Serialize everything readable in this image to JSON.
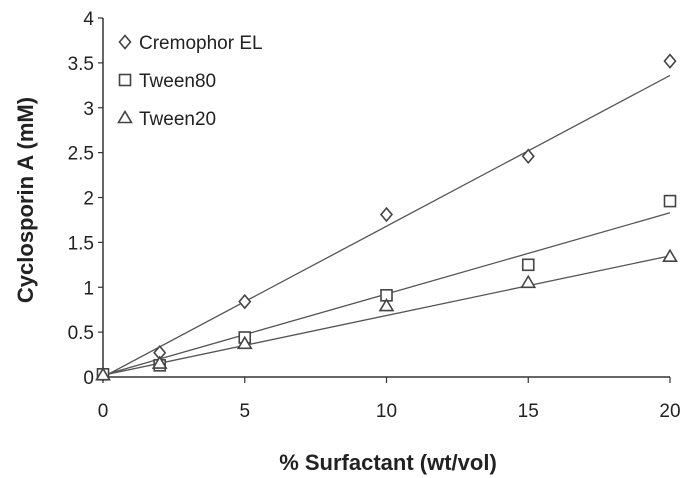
{
  "chart_data": {
    "type": "scatter",
    "xlabel": "% Surfactant (wt/vol)",
    "ylabel": "Cyclosporin A (mM)",
    "xlim": [
      0,
      20
    ],
    "ylim": [
      0,
      4
    ],
    "xticks": [
      "0",
      "5",
      "10",
      "15",
      "20"
    ],
    "yticks": [
      "0",
      "0.5",
      "1",
      "1.5",
      "2",
      "2.5",
      "3",
      "3.5",
      "4"
    ],
    "grid": false,
    "legend_position": "top-left",
    "series": [
      {
        "name": "Cremophor EL",
        "marker": "diamond",
        "x": [
          0,
          2,
          5,
          10,
          15,
          20
        ],
        "y": [
          0.03,
          0.27,
          0.84,
          1.81,
          2.46,
          3.52
        ],
        "fit_line": {
          "x": [
            0,
            20
          ],
          "y": [
            0.0,
            3.36
          ]
        }
      },
      {
        "name": "Tween80",
        "marker": "square",
        "x": [
          0,
          2,
          5,
          10,
          15,
          20
        ],
        "y": [
          0.03,
          0.13,
          0.44,
          0.91,
          1.25,
          1.96
        ],
        "fit_line": {
          "x": [
            0,
            20
          ],
          "y": [
            0.02,
            1.83
          ]
        }
      },
      {
        "name": "Tween20",
        "marker": "triangle",
        "x": [
          0,
          2,
          5,
          10,
          15,
          20
        ],
        "y": [
          0.02,
          0.15,
          0.37,
          0.79,
          1.05,
          1.34
        ],
        "fit_line": {
          "x": [
            0,
            20
          ],
          "y": [
            0.02,
            1.35
          ]
        }
      }
    ],
    "colors": {
      "marker": "#444444",
      "line": "#555555",
      "axis": "#333333"
    }
  }
}
